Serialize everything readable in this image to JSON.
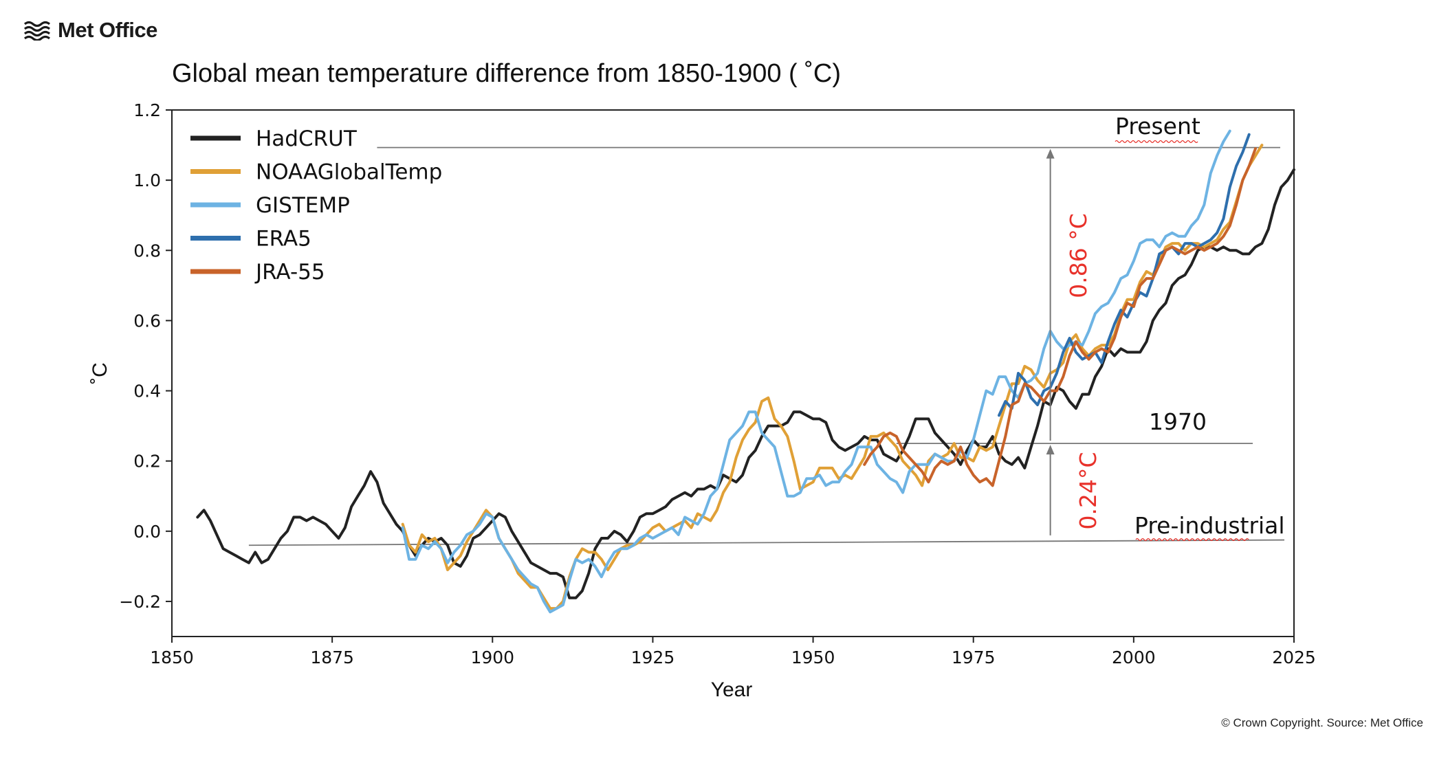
{
  "brand": {
    "name": "Met Office"
  },
  "copyright": "© Crown Copyright. Source: Met Office",
  "chart_data": {
    "type": "line",
    "title": "Global mean temperature difference from 1850-1900 ( ˚C)",
    "xlabel": "Year",
    "ylabel": "˚C",
    "xlim": [
      1850,
      2025
    ],
    "ylim": [
      -0.3,
      1.2
    ],
    "xticks": [
      1850,
      1875,
      1900,
      1925,
      1950,
      1975,
      2000,
      2025
    ],
    "yticks": [
      -0.2,
      0.0,
      0.2,
      0.4,
      0.6,
      0.8,
      1.0,
      1.2
    ],
    "ytick_labels": [
      "−0.2",
      "0.0",
      "0.2",
      "0.4",
      "0.6",
      "0.8",
      "1.0",
      "1.2"
    ],
    "grid": false,
    "legend_position": "top-left",
    "series": [
      {
        "name": "HadCRUT",
        "color": "#222222",
        "x_start": 1854,
        "values": [
          0.04,
          0.06,
          0.03,
          -0.01,
          -0.05,
          -0.06,
          -0.07,
          -0.08,
          -0.09,
          -0.06,
          -0.09,
          -0.08,
          -0.05,
          -0.02,
          0.0,
          0.04,
          0.04,
          0.03,
          0.04,
          0.03,
          0.02,
          0.0,
          -0.02,
          0.01,
          0.07,
          0.1,
          0.13,
          0.17,
          0.14,
          0.08,
          0.05,
          0.02,
          0.0,
          -0.04,
          -0.07,
          -0.04,
          -0.02,
          -0.03,
          -0.02,
          -0.04,
          -0.09,
          -0.1,
          -0.07,
          -0.02,
          -0.01,
          0.01,
          0.03,
          0.05,
          0.04,
          0.0,
          -0.03,
          -0.06,
          -0.09,
          -0.1,
          -0.11,
          -0.12,
          -0.12,
          -0.13,
          -0.19,
          -0.19,
          -0.17,
          -0.12,
          -0.05,
          -0.02,
          -0.02,
          0.0,
          -0.01,
          -0.03,
          0.0,
          0.04,
          0.05,
          0.05,
          0.06,
          0.07,
          0.09,
          0.1,
          0.11,
          0.1,
          0.12,
          0.12,
          0.13,
          0.12,
          0.16,
          0.15,
          0.14,
          0.16,
          0.21,
          0.23,
          0.27,
          0.3,
          0.3,
          0.3,
          0.31,
          0.34,
          0.34,
          0.33,
          0.32,
          0.32,
          0.31,
          0.26,
          0.24,
          0.23,
          0.24,
          0.25,
          0.27,
          0.26,
          0.26,
          0.22,
          0.21,
          0.2,
          0.23,
          0.27,
          0.32,
          0.32,
          0.32,
          0.28,
          0.26,
          0.24,
          0.22,
          0.19,
          0.23,
          0.26,
          0.24,
          0.24,
          0.27,
          0.22,
          0.2,
          0.19,
          0.21,
          0.18,
          0.24,
          0.3,
          0.37,
          0.36,
          0.41,
          0.4,
          0.37,
          0.35,
          0.39,
          0.39,
          0.44,
          0.47,
          0.52,
          0.5,
          0.52,
          0.51,
          0.51,
          0.51,
          0.54,
          0.6,
          0.63,
          0.65,
          0.7,
          0.72,
          0.73,
          0.76,
          0.8,
          0.81,
          0.81,
          0.8,
          0.81,
          0.8,
          0.8,
          0.79,
          0.79,
          0.81,
          0.82,
          0.86,
          0.93,
          0.98,
          1.0,
          1.03
        ]
      },
      {
        "name": "NOAAGlobalTemp",
        "color": "#e0a036",
        "x_start": 1886,
        "values": [
          0.02,
          -0.04,
          -0.06,
          -0.01,
          -0.03,
          -0.02,
          -0.05,
          -0.11,
          -0.09,
          -0.07,
          -0.03,
          0.0,
          0.03,
          0.06,
          0.04,
          -0.02,
          -0.05,
          -0.08,
          -0.12,
          -0.14,
          -0.16,
          -0.16,
          -0.19,
          -0.22,
          -0.22,
          -0.2,
          -0.13,
          -0.08,
          -0.05,
          -0.06,
          -0.06,
          -0.08,
          -0.11,
          -0.08,
          -0.05,
          -0.04,
          -0.04,
          -0.03,
          -0.01,
          0.01,
          0.02,
          0.0,
          0.01,
          0.02,
          0.03,
          0.01,
          0.05,
          0.04,
          0.03,
          0.06,
          0.11,
          0.14,
          0.21,
          0.26,
          0.29,
          0.31,
          0.37,
          0.38,
          0.32,
          0.3,
          0.27,
          0.2,
          0.12,
          0.13,
          0.14,
          0.18,
          0.18,
          0.18,
          0.15,
          0.16,
          0.15,
          0.18,
          0.21,
          0.27,
          0.27,
          0.28,
          0.26,
          0.24,
          0.2,
          0.18,
          0.16,
          0.13,
          0.2,
          0.22,
          0.21,
          0.22,
          0.25,
          0.21,
          0.21,
          0.2,
          0.24,
          0.23,
          0.24,
          0.3,
          0.36,
          0.42,
          0.42,
          0.47,
          0.46,
          0.43,
          0.41,
          0.45,
          0.46,
          0.48,
          0.54,
          0.56,
          0.52,
          0.5,
          0.52,
          0.53,
          0.53,
          0.56,
          0.62,
          0.66,
          0.66,
          0.71,
          0.74,
          0.73,
          0.77,
          0.81,
          0.82,
          0.82,
          0.8,
          0.82,
          0.82,
          0.81,
          0.82,
          0.83,
          0.86,
          0.88,
          0.94,
          1.0,
          1.04,
          1.07,
          1.1
        ]
      },
      {
        "name": "GISTEMP",
        "color": "#6db3e3",
        "x_start": 1886,
        "values": [
          0.01,
          -0.08,
          -0.08,
          -0.04,
          -0.05,
          -0.03,
          -0.05,
          -0.09,
          -0.06,
          -0.04,
          -0.01,
          0.0,
          0.02,
          0.05,
          0.04,
          -0.02,
          -0.05,
          -0.08,
          -0.11,
          -0.13,
          -0.15,
          -0.16,
          -0.2,
          -0.23,
          -0.22,
          -0.21,
          -0.14,
          -0.08,
          -0.09,
          -0.08,
          -0.1,
          -0.13,
          -0.09,
          -0.06,
          -0.05,
          -0.05,
          -0.04,
          -0.02,
          -0.01,
          -0.02,
          -0.01,
          0.0,
          0.01,
          -0.01,
          0.04,
          0.03,
          0.02,
          0.05,
          0.1,
          0.12,
          0.19,
          0.26,
          0.28,
          0.3,
          0.34,
          0.34,
          0.28,
          0.26,
          0.24,
          0.17,
          0.1,
          0.1,
          0.11,
          0.15,
          0.15,
          0.16,
          0.13,
          0.14,
          0.14,
          0.17,
          0.19,
          0.24,
          0.24,
          0.24,
          0.19,
          0.17,
          0.15,
          0.14,
          0.11,
          0.17,
          0.19,
          0.19,
          0.19,
          0.22,
          0.21,
          0.2,
          0.2,
          0.23,
          0.21,
          0.26,
          0.33,
          0.4,
          0.39,
          0.44,
          0.44,
          0.4,
          0.38,
          0.42,
          0.43,
          0.45,
          0.52,
          0.57,
          0.54,
          0.52,
          0.53,
          0.54,
          0.53,
          0.57,
          0.62,
          0.64,
          0.65,
          0.68,
          0.72,
          0.73,
          0.77,
          0.82,
          0.83,
          0.83,
          0.81,
          0.84,
          0.85,
          0.84,
          0.84,
          0.87,
          0.89,
          0.93,
          1.02,
          1.07,
          1.11,
          1.14
        ]
      },
      {
        "name": "ERA5",
        "color": "#2e6fad",
        "x_start": 1979,
        "values": [
          0.33,
          0.37,
          0.35,
          0.45,
          0.43,
          0.38,
          0.36,
          0.4,
          0.41,
          0.45,
          0.51,
          0.55,
          0.51,
          0.49,
          0.5,
          0.51,
          0.48,
          0.54,
          0.59,
          0.63,
          0.61,
          0.65,
          0.68,
          0.67,
          0.72,
          0.79,
          0.8,
          0.81,
          0.79,
          0.82,
          0.82,
          0.81,
          0.82,
          0.83,
          0.85,
          0.89,
          0.98,
          1.04,
          1.08,
          1.13
        ]
      },
      {
        "name": "JRA-55",
        "color": "#c8632a",
        "x_start": 1958,
        "values": [
          0.19,
          0.22,
          0.24,
          0.27,
          0.28,
          0.27,
          0.23,
          0.21,
          0.19,
          0.17,
          0.14,
          0.18,
          0.2,
          0.19,
          0.2,
          0.24,
          0.19,
          0.16,
          0.14,
          0.15,
          0.13,
          0.2,
          0.27,
          0.36,
          0.37,
          0.42,
          0.41,
          0.39,
          0.37,
          0.4,
          0.4,
          0.44,
          0.5,
          0.54,
          0.51,
          0.49,
          0.51,
          0.52,
          0.51,
          0.55,
          0.61,
          0.65,
          0.64,
          0.7,
          0.72,
          0.72,
          0.76,
          0.8,
          0.81,
          0.8,
          0.79,
          0.8,
          0.81,
          0.8,
          0.81,
          0.82,
          0.84,
          0.87,
          0.93,
          1.0,
          1.04,
          1.09
        ]
      }
    ],
    "reference_lines": {
      "present": {
        "label": "Present",
        "value": 1.093,
        "x_from": 1882
      },
      "year_1970": {
        "label": "1970",
        "value": 0.25,
        "x_from": 1963
      },
      "pre_industrial": {
        "label": "Pre-industrial",
        "value": -0.04,
        "x_from": 1862,
        "value_end": -0.025
      }
    },
    "annotations": {
      "arrow_x_year": 1987,
      "upper_change": "0.86 °C",
      "lower_change": "0.24°C",
      "color": "#e8312a"
    }
  }
}
